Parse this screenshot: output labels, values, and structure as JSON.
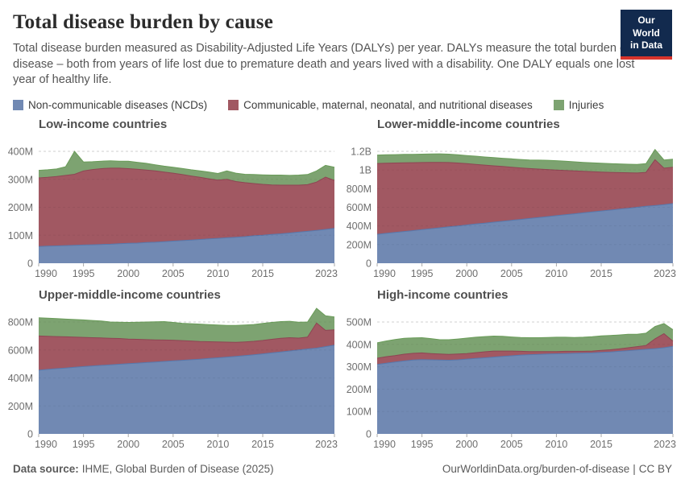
{
  "header": {
    "title": "Total disease burden by cause",
    "subtitle": "Total disease burden measured as Disability-Adjusted Life Years (DALYs) per year. DALYs measure the total burden of disease – both from years of life lost due to premature death and years lived with a disability. One DALY equals one lost year of healthy life.",
    "logo": {
      "line1": "Our World",
      "line2": "in Data"
    }
  },
  "legend": {
    "items": [
      {
        "label": "Non-communicable diseases (NCDs)",
        "color": "#7189b3"
      },
      {
        "label": "Communicable, maternal, neonatal, and nutritional diseases",
        "color": "#a15862"
      },
      {
        "label": "Injuries",
        "color": "#7da371"
      }
    ]
  },
  "colors": {
    "series": [
      {
        "name": "ncd",
        "fill": "#7189b3",
        "stroke": "#5878ac"
      },
      {
        "name": "cmnn",
        "fill": "#a15862",
        "stroke": "#8e4553"
      },
      {
        "name": "injuries",
        "fill": "#7da371",
        "stroke": "#699c58"
      }
    ],
    "grid": "#dcdcdc",
    "axis_text": "#6e6e6e",
    "tick": "#a9a9a9"
  },
  "footer": {
    "source_label": "Data source:",
    "source": "IHME, Global Burden of Disease (2025)",
    "url": "OurWorldinData.org/burden-of-disease",
    "separator": "|",
    "license": "CC BY"
  },
  "chart_data": [
    {
      "type": "area",
      "title": "Low-income countries",
      "unit": "DALYs (millions) per year, stacked",
      "x": [
        1990,
        1991,
        1992,
        1993,
        1994,
        1995,
        1996,
        1997,
        1998,
        1999,
        2000,
        2001,
        2002,
        2003,
        2004,
        2005,
        2006,
        2007,
        2008,
        2009,
        2010,
        2011,
        2012,
        2013,
        2014,
        2015,
        2016,
        2017,
        2018,
        2019,
        2020,
        2021,
        2022,
        2023
      ],
      "x_ticks": [
        1990,
        1995,
        2000,
        2005,
        2010,
        2015,
        2023
      ],
      "y_top_value": 400,
      "y_ticks": [
        {
          "value": 0,
          "label": "0"
        },
        {
          "value": 100,
          "label": "100M"
        },
        {
          "value": 200,
          "label": "200M"
        },
        {
          "value": 300,
          "label": "300M"
        },
        {
          "value": 400,
          "label": "400M"
        }
      ],
      "series": [
        {
          "name": "Non-communicable diseases (NCDs)",
          "values": [
            60,
            61,
            62,
            63,
            64,
            65,
            66,
            67,
            68,
            70,
            71,
            72,
            74,
            75,
            77,
            79,
            81,
            83,
            85,
            87,
            89,
            91,
            93,
            95,
            98,
            100,
            103,
            105,
            108,
            111,
            114,
            117,
            121,
            125
          ]
        },
        {
          "name": "Communicable, maternal, neonatal, and nutritional diseases",
          "values": [
            245,
            246,
            248,
            251,
            254,
            265,
            269,
            271,
            272,
            270,
            267,
            264,
            259,
            255,
            249,
            243,
            236,
            229,
            222,
            215,
            208,
            209,
            199,
            193,
            187,
            182,
            177,
            174,
            171,
            168,
            167,
            173,
            187,
            171
          ]
        },
        {
          "name": "Injuries",
          "values": [
            27,
            27,
            27,
            31,
            82,
            32,
            28,
            27,
            26,
            25,
            27,
            25,
            24,
            22,
            21,
            21,
            22,
            22,
            23,
            24,
            24,
            30,
            30,
            30,
            32,
            34,
            35,
            36,
            35,
            36,
            36,
            40,
            42,
            47
          ]
        }
      ]
    },
    {
      "type": "area",
      "title": "Lower-middle-income countries",
      "unit": "DALYs (millions) per year, stacked",
      "x": [
        1990,
        1991,
        1992,
        1993,
        1994,
        1995,
        1996,
        1997,
        1998,
        1999,
        2000,
        2001,
        2002,
        2003,
        2004,
        2005,
        2006,
        2007,
        2008,
        2009,
        2010,
        2011,
        2012,
        2013,
        2014,
        2015,
        2016,
        2017,
        2018,
        2019,
        2020,
        2021,
        2022,
        2023
      ],
      "x_ticks": [
        1990,
        1995,
        2000,
        2005,
        2010,
        2015,
        2023
      ],
      "y_top_value": 1200,
      "y_ticks": [
        {
          "value": 0,
          "label": "0"
        },
        {
          "value": 200,
          "label": "200M"
        },
        {
          "value": 400,
          "label": "400M"
        },
        {
          "value": 600,
          "label": "600M"
        },
        {
          "value": 800,
          "label": "800M"
        },
        {
          "value": 1000,
          "label": "1B"
        },
        {
          "value": 1200,
          "label": "1.2B"
        }
      ],
      "series": [
        {
          "name": "Non-communicable diseases (NCDs)",
          "values": [
            310,
            320,
            330,
            340,
            350,
            360,
            370,
            380,
            390,
            400,
            410,
            420,
            430,
            440,
            450,
            460,
            470,
            480,
            490,
            500,
            510,
            520,
            530,
            540,
            550,
            560,
            570,
            580,
            590,
            600,
            610,
            618,
            628,
            640
          ]
        },
        {
          "name": "Communicable, maternal, neonatal, and nutritional diseases",
          "values": [
            760,
            753,
            745,
            737,
            728,
            720,
            711,
            702,
            690,
            675,
            658,
            640,
            622,
            605,
            588,
            570,
            552,
            535,
            520,
            505,
            490,
            475,
            460,
            446,
            432,
            418,
            405,
            392,
            380,
            368,
            365,
            492,
            392,
            390
          ]
        },
        {
          "name": "Injuries",
          "values": [
            90,
            90,
            90,
            90,
            90,
            90,
            91,
            91,
            90,
            88,
            87,
            88,
            88,
            88,
            88,
            90,
            91,
            93,
            96,
            99,
            100,
            99,
            98,
            96,
            95,
            94,
            93,
            93,
            92,
            92,
            93,
            110,
            88,
            85
          ]
        }
      ]
    },
    {
      "type": "area",
      "title": "Upper-middle-income countries",
      "unit": "DALYs (millions) per year, stacked",
      "x": [
        1990,
        1991,
        1992,
        1993,
        1994,
        1995,
        1996,
        1997,
        1998,
        1999,
        2000,
        2001,
        2002,
        2003,
        2004,
        2005,
        2006,
        2007,
        2008,
        2009,
        2010,
        2011,
        2012,
        2013,
        2014,
        2015,
        2016,
        2017,
        2018,
        2019,
        2020,
        2021,
        2022,
        2023
      ],
      "x_ticks": [
        1990,
        1995,
        2000,
        2005,
        2010,
        2015,
        2023
      ],
      "y_top_value": 800,
      "y_ticks": [
        {
          "value": 0,
          "label": "0"
        },
        {
          "value": 200,
          "label": "200M"
        },
        {
          "value": 400,
          "label": "400M"
        },
        {
          "value": 600,
          "label": "600M"
        },
        {
          "value": 800,
          "label": "800M"
        }
      ],
      "series": [
        {
          "name": "Non-communicable diseases (NCDs)",
          "values": [
            455,
            461,
            466,
            471,
            476,
            481,
            486,
            490,
            494,
            498,
            502,
            506,
            510,
            514,
            518,
            522,
            526,
            530,
            534,
            539,
            544,
            549,
            554,
            560,
            566,
            572,
            579,
            586,
            593,
            600,
            607,
            613,
            624,
            635
          ]
        },
        {
          "name": "Communicable, maternal, neonatal, and nutritional diseases",
          "values": [
            245,
            237,
            230,
            223,
            216,
            209,
            202,
            196,
            190,
            184,
            176,
            170,
            164,
            158,
            153,
            148,
            141,
            134,
            127,
            120,
            114,
            107,
            101,
            98,
            96,
            96,
            97,
            98,
            95,
            85,
            85,
            180,
            116,
            109
          ]
        },
        {
          "name": "Injuries",
          "values": [
            130,
            129,
            128,
            127,
            126,
            125,
            123,
            121,
            116,
            116,
            119,
            122,
            126,
            130,
            132,
            127,
            124,
            124,
            124,
            122,
            120,
            120,
            120,
            120,
            120,
            122,
            121,
            119,
            117,
            113,
            108,
            105,
            105,
            92
          ]
        }
      ]
    },
    {
      "type": "area",
      "title": "High-income countries",
      "unit": "DALYs (millions) per year, stacked",
      "x": [
        1990,
        1991,
        1992,
        1993,
        1994,
        1995,
        1996,
        1997,
        1998,
        1999,
        2000,
        2001,
        2002,
        2003,
        2004,
        2005,
        2006,
        2007,
        2008,
        2009,
        2010,
        2011,
        2012,
        2013,
        2014,
        2015,
        2016,
        2017,
        2018,
        2019,
        2020,
        2021,
        2022,
        2023
      ],
      "x_ticks": [
        1990,
        1995,
        2000,
        2005,
        2010,
        2015,
        2023
      ],
      "y_top_value": 500,
      "y_ticks": [
        {
          "value": 0,
          "label": "0"
        },
        {
          "value": 100,
          "label": "100M"
        },
        {
          "value": 200,
          "label": "200M"
        },
        {
          "value": 300,
          "label": "300M"
        },
        {
          "value": 400,
          "label": "400M"
        },
        {
          "value": 500,
          "label": "500M"
        }
      ],
      "series": [
        {
          "name": "Non-communicable diseases (NCDs)",
          "values": [
            310,
            316,
            321,
            326,
            330,
            332,
            331,
            330,
            329,
            331,
            334,
            337,
            340,
            343,
            346,
            349,
            352,
            354,
            355,
            357,
            358,
            359,
            360,
            361,
            362,
            364,
            366,
            369,
            372,
            375,
            378,
            381,
            385,
            391
          ]
        },
        {
          "name": "Communicable, maternal, neonatal, and nutritional diseases",
          "values": [
            28,
            29,
            29,
            30,
            30,
            30,
            28,
            27,
            26,
            26,
            25,
            26,
            27,
            27,
            24,
            21,
            17,
            14,
            13,
            11,
            10,
            10,
            9,
            8,
            8,
            9,
            10,
            11,
            13,
            15,
            17,
            44,
            63,
            23
          ]
        },
        {
          "name": "Injuries",
          "values": [
            69,
            70,
            72,
            71,
            69,
            68,
            67,
            64,
            66,
            67,
            69,
            69,
            68,
            67,
            66,
            63,
            62,
            62,
            62,
            63,
            64,
            63,
            62,
            63,
            64,
            65,
            64,
            62,
            60,
            55,
            55,
            55,
            45,
            52
          ]
        }
      ]
    }
  ]
}
